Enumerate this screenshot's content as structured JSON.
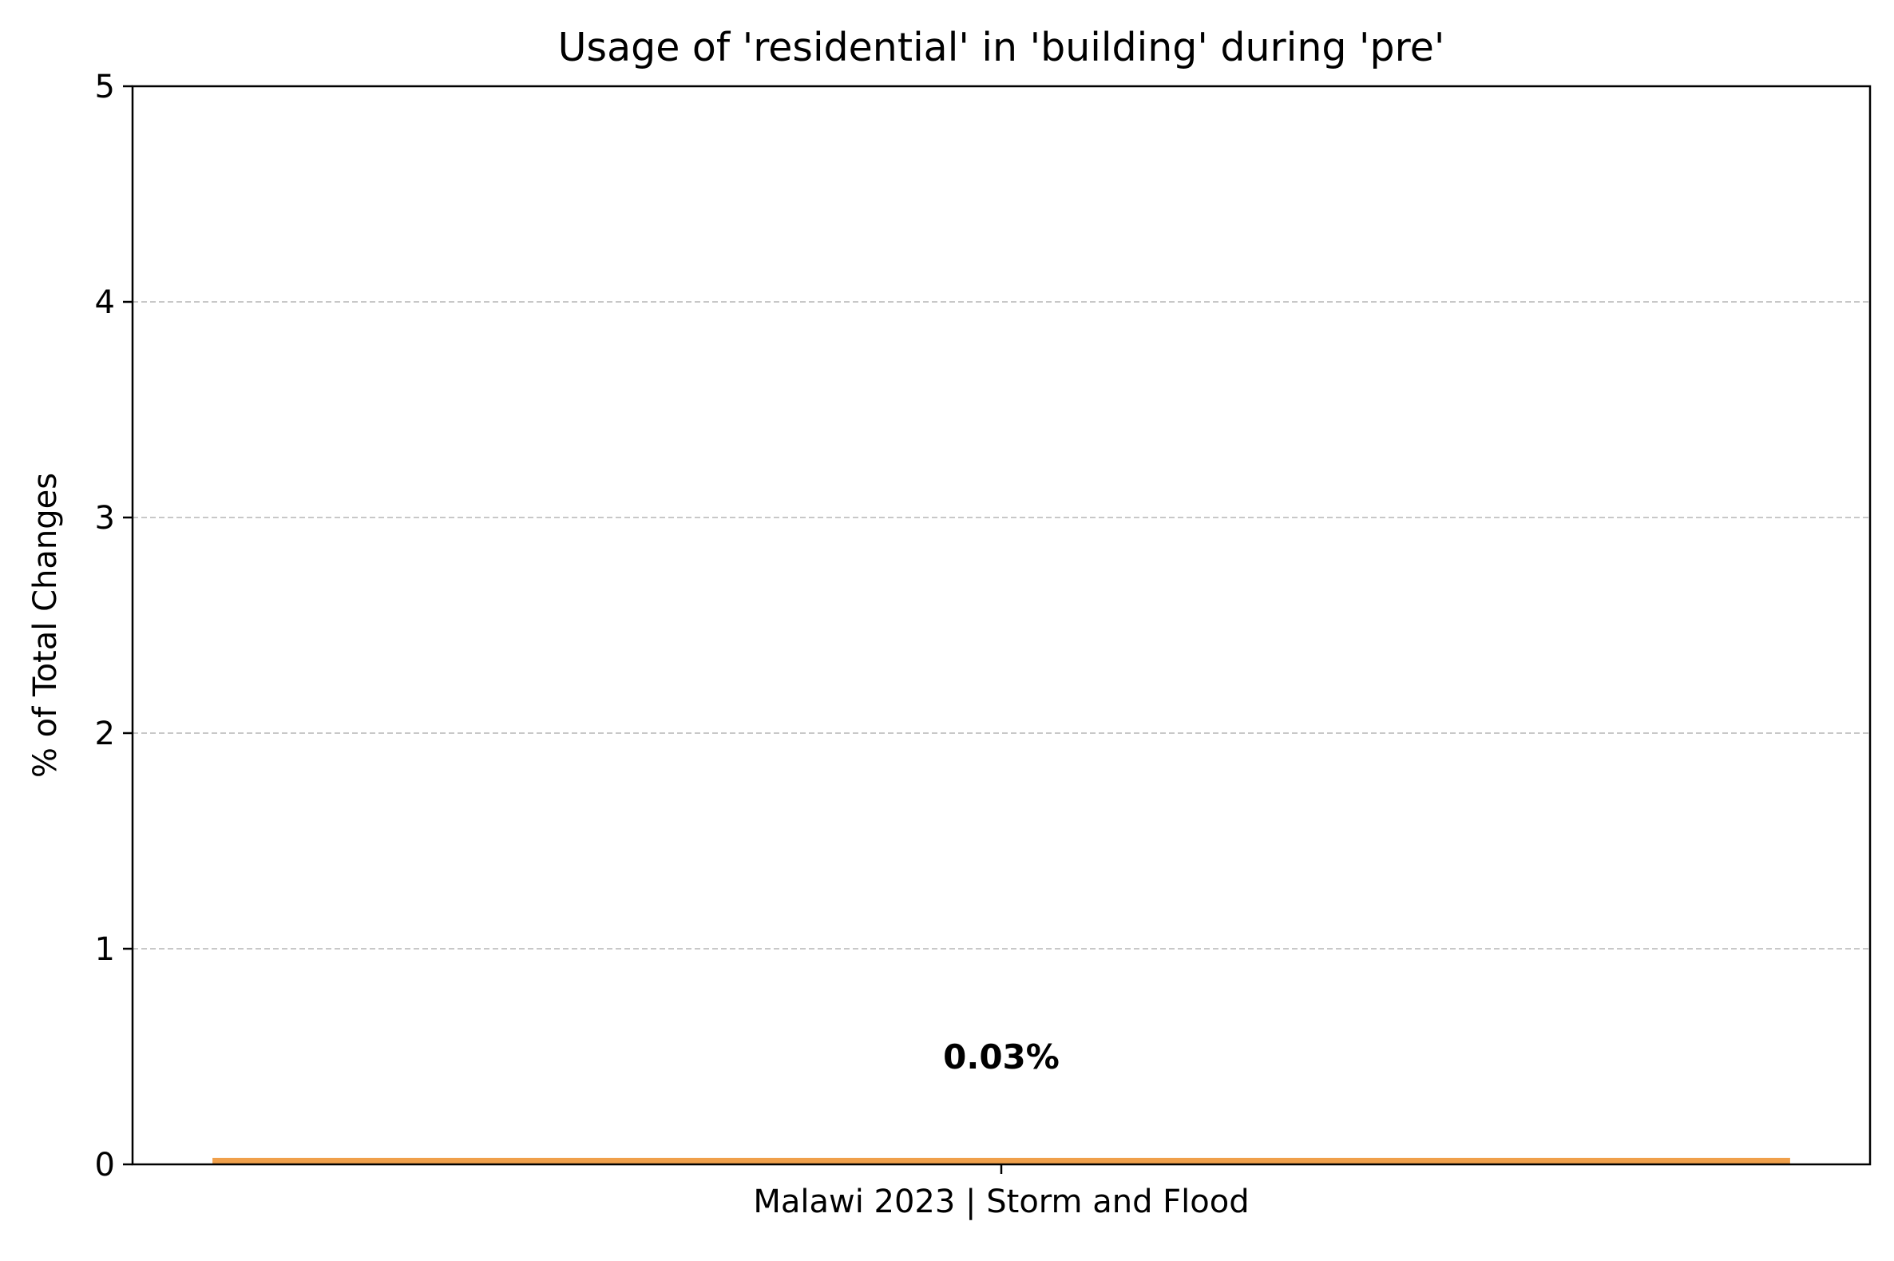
{
  "chart_data": {
    "type": "bar",
    "title": "Usage of 'residential' in 'building' during 'pre'",
    "xlabel": "",
    "ylabel": "% of Total Changes",
    "categories": [
      "Malawi 2023 | Storm and Flood"
    ],
    "values": [
      0.03
    ],
    "data_labels": [
      "0.03%"
    ],
    "ylim": [
      0,
      5
    ],
    "yticks": [
      "0",
      "1",
      "2",
      "3",
      "4",
      "5"
    ],
    "grid": "horizontal dashed",
    "bar_color": "#f0a04b",
    "grid_color": "#c8c8c8"
  }
}
